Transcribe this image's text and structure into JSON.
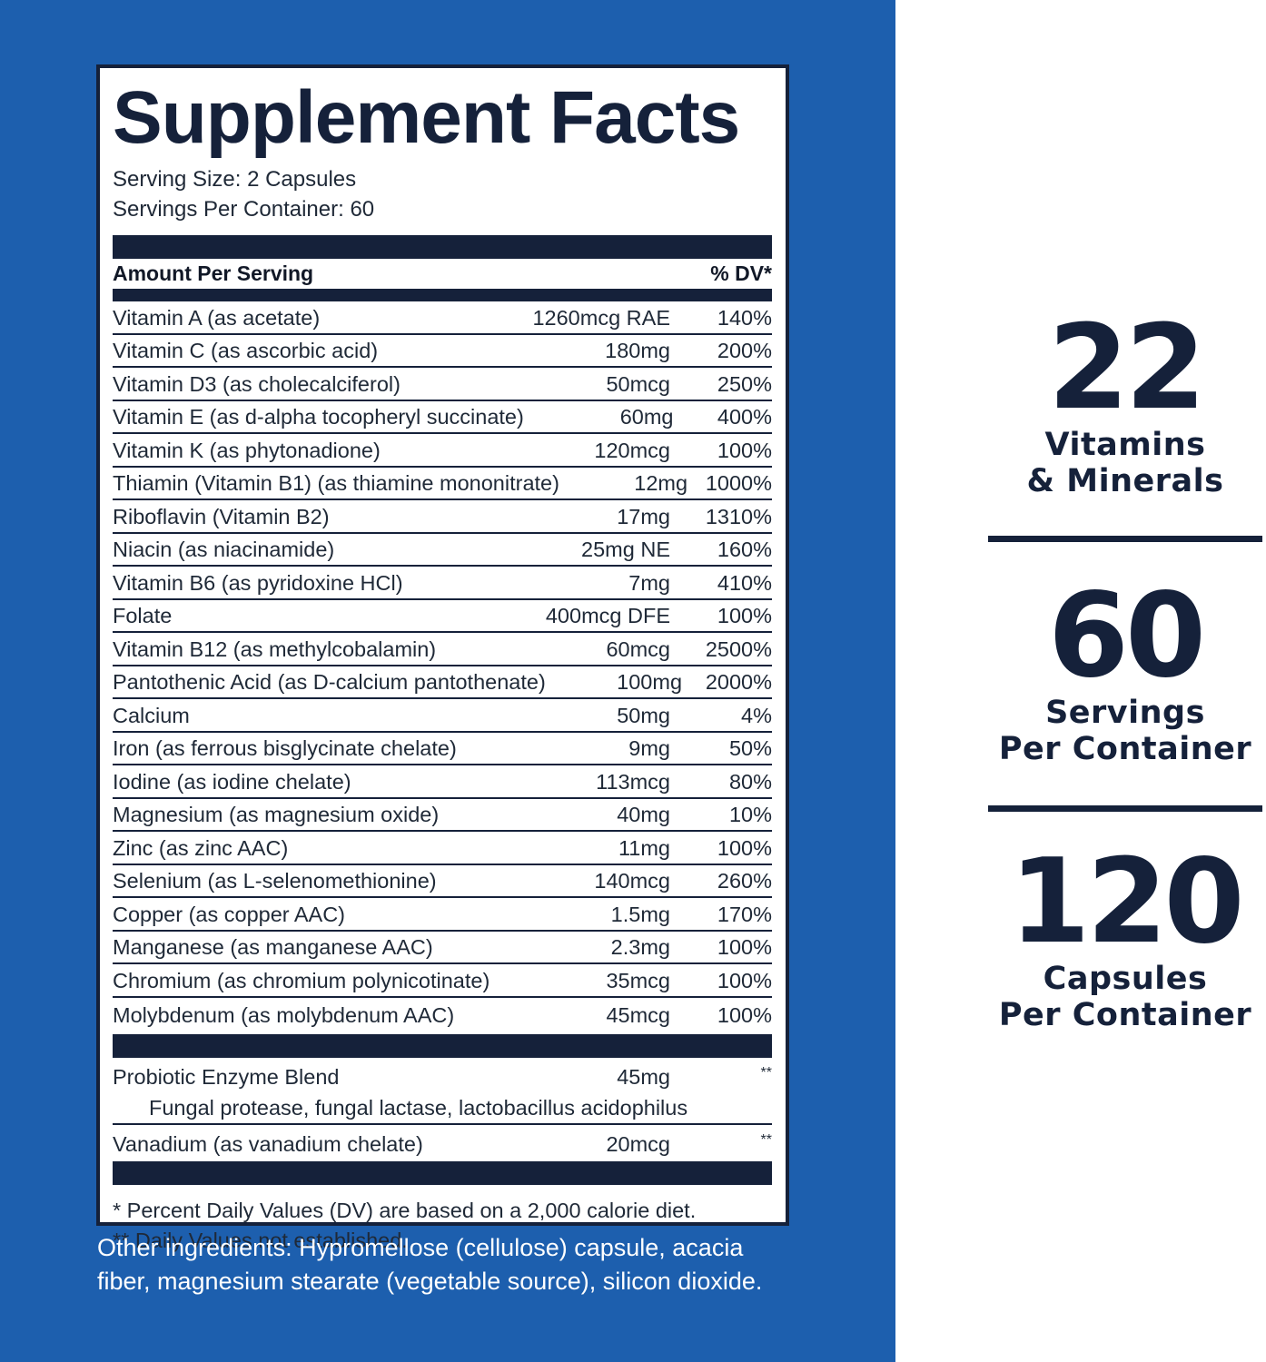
{
  "facts": {
    "title": "Supplement Facts",
    "serving_size": "Serving Size: 2 Capsules",
    "servings_per_container": "Servings Per Container: 60",
    "header_amount": "Amount Per Serving",
    "header_dv": "% DV*",
    "nutrients": [
      {
        "name": "Vitamin A (as acetate)",
        "amount": "1260mcg RAE",
        "dv": "140%"
      },
      {
        "name": "Vitamin C (as ascorbic acid)",
        "amount": "180mg",
        "dv": "200%"
      },
      {
        "name": "Vitamin D3 (as cholecalciferol)",
        "amount": "50mcg",
        "dv": "250%"
      },
      {
        "name": "Vitamin E (as d-alpha tocopheryl succinate)",
        "amount": "60mg",
        "dv": "400%"
      },
      {
        "name": "Vitamin K (as phytonadione)",
        "amount": "120mcg",
        "dv": "100%"
      },
      {
        "name": "Thiamin (Vitamin B1) (as thiamine mononitrate)",
        "amount": "12mg",
        "dv": "1000%"
      },
      {
        "name": "Riboflavin (Vitamin B2)",
        "amount": "17mg",
        "dv": "1310%"
      },
      {
        "name": "Niacin (as niacinamide)",
        "amount": "25mg NE",
        "dv": "160%"
      },
      {
        "name": "Vitamin B6 (as pyridoxine HCl)",
        "amount": "7mg",
        "dv": "410%"
      },
      {
        "name": "Folate",
        "amount": "400mcg DFE",
        "dv": "100%"
      },
      {
        "name": "Vitamin B12 (as methylcobalamin)",
        "amount": "60mcg",
        "dv": "2500%"
      },
      {
        "name": "Pantothenic Acid (as D-calcium pantothenate)",
        "amount": "100mg",
        "dv": "2000%"
      },
      {
        "name": "Calcium",
        "amount": "50mg",
        "dv": "4%"
      },
      {
        "name": "Iron (as ferrous bisglycinate chelate)",
        "amount": "9mg",
        "dv": "50%"
      },
      {
        "name": "Iodine (as iodine chelate)",
        "amount": "113mcg",
        "dv": "80%"
      },
      {
        "name": "Magnesium (as magnesium oxide)",
        "amount": "40mg",
        "dv": "10%"
      },
      {
        "name": "Zinc (as zinc AAC)",
        "amount": "11mg",
        "dv": "100%"
      },
      {
        "name": "Selenium (as L-selenomethionine)",
        "amount": "140mcg",
        "dv": "260%"
      },
      {
        "name": "Copper (as copper AAC)",
        "amount": "1.5mg",
        "dv": "170%"
      },
      {
        "name": "Manganese (as manganese AAC)",
        "amount": "2.3mg",
        "dv": "100%"
      },
      {
        "name": "Chromium (as chromium polynicotinate)",
        "amount": "35mcg",
        "dv": "100%"
      },
      {
        "name": "Molybdenum (as molybdenum AAC)",
        "amount": "45mcg",
        "dv": "100%"
      }
    ],
    "blend": {
      "name": "Probiotic Enzyme Blend",
      "amount": "45mg",
      "dv": "**",
      "sub": "Fungal protease, fungal lactase, lactobacillus acidophilus"
    },
    "vanadium": {
      "name": "Vanadium (as vanadium chelate)",
      "amount": "20mcg",
      "dv": "**"
    },
    "footnote_1": "* Percent Daily Values (DV) are based on a 2,000 calorie diet.",
    "footnote_2": "** Daily Values not established."
  },
  "other_ingredients": {
    "line_1": "Other ingredients: Hypromellose (cellulose) capsule, acacia",
    "line_2": "fiber, magnesium stearate (vegetable source), silicon dioxide."
  },
  "stats": [
    {
      "number": "22",
      "label_1": "Vitamins",
      "label_2": "& Minerals"
    },
    {
      "number": "60",
      "label_1": "Servings",
      "label_2": "Per Container"
    },
    {
      "number": "120",
      "label_1": "Capsules",
      "label_2": "Per Container"
    }
  ],
  "colors": {
    "panel_blue": "#1d5fae",
    "navy": "#15213a",
    "white": "#ffffff"
  }
}
